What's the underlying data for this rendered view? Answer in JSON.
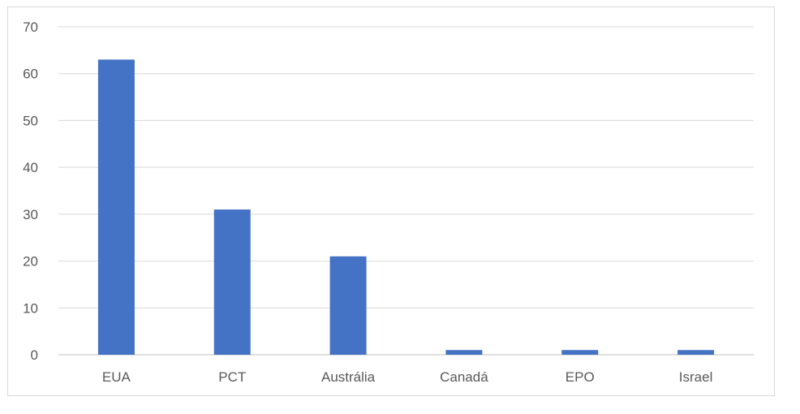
{
  "chart_data": {
    "type": "bar",
    "categories": [
      "EUA",
      "PCT",
      "Austrália",
      "Canadá",
      "EPO",
      "Israel"
    ],
    "values": [
      63,
      31,
      21,
      1,
      1,
      1
    ],
    "title": "",
    "xlabel": "",
    "ylabel": "",
    "ylim": [
      0,
      70
    ],
    "yticks": [
      0,
      10,
      20,
      30,
      40,
      50,
      60,
      70
    ],
    "grid": true,
    "legend": "none",
    "bar_color": "#4472C4"
  }
}
